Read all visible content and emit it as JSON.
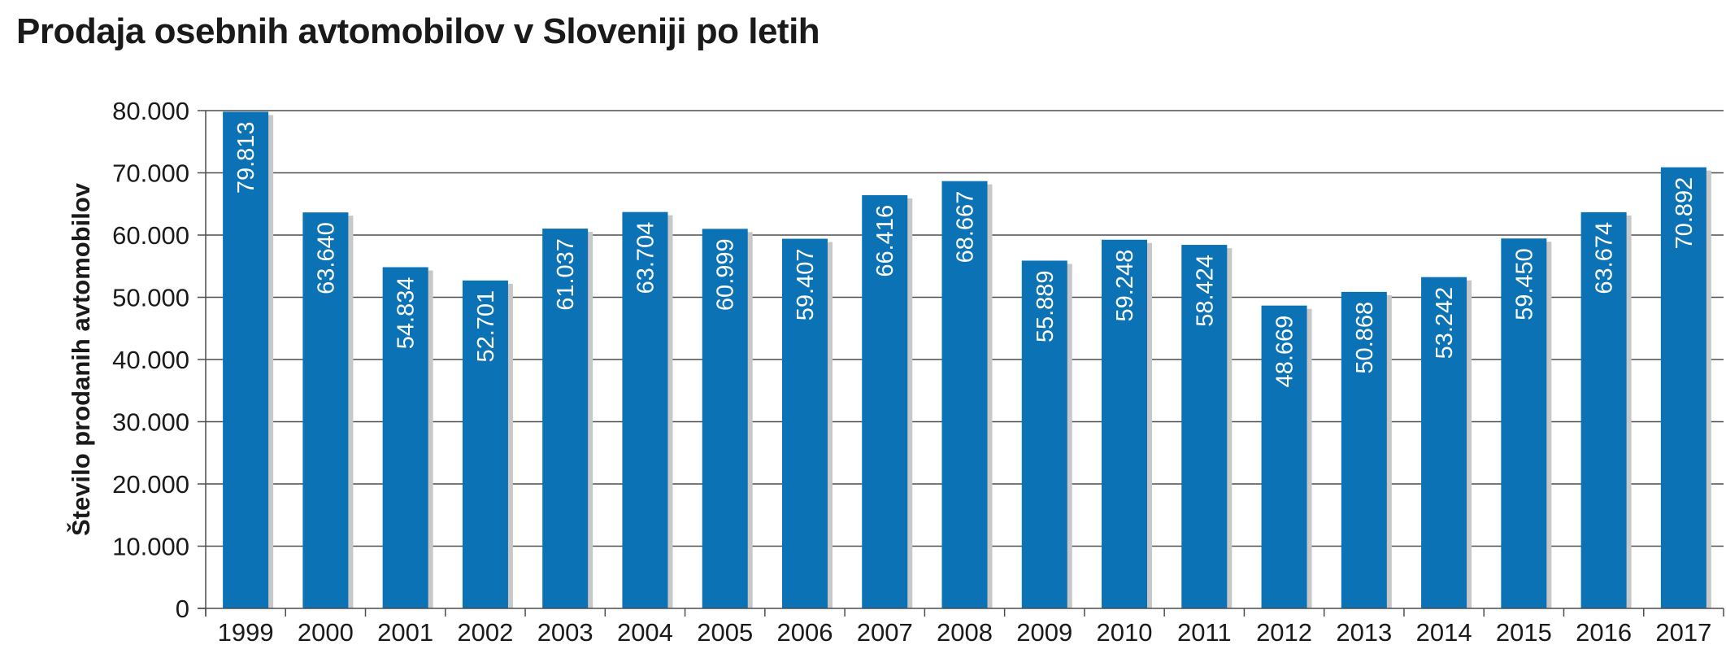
{
  "chart_data": {
    "type": "bar",
    "title": "Prodaja osebnih avtomobilov v Sloveniji po letih",
    "xlabel": "",
    "ylabel": "Število prodanih avtomobilov",
    "categories": [
      "1999",
      "2000",
      "2001",
      "2002",
      "2003",
      "2004",
      "2005",
      "2006",
      "2007",
      "2008",
      "2009",
      "2010",
      "2011",
      "2012",
      "2013",
      "2014",
      "2015",
      "2016",
      "2017"
    ],
    "values": [
      79813,
      63640,
      54834,
      52701,
      61037,
      63704,
      60999,
      59407,
      66416,
      68667,
      55889,
      59248,
      58424,
      48669,
      50868,
      53242,
      59450,
      63674,
      70892
    ],
    "value_labels": [
      "79.813",
      "63.640",
      "54.834",
      "52.701",
      "61.037",
      "63.704",
      "60.999",
      "59.407",
      "66.416",
      "68.667",
      "55.889",
      "59.248",
      "58.424",
      "48.669",
      "50.868",
      "53.242",
      "59.450",
      "63.674",
      "70.892"
    ],
    "ylim": [
      0,
      80000
    ],
    "yticks": [
      0,
      10000,
      20000,
      30000,
      40000,
      50000,
      60000,
      70000,
      80000
    ],
    "ytick_labels": [
      "0",
      "10.000",
      "20.000",
      "30.000",
      "40.000",
      "50.000",
      "60.000",
      "70.000",
      "80.000"
    ],
    "grid": true,
    "legend": "none",
    "colors": {
      "bar": "#0a72b5",
      "grid": "#4d4d4d",
      "shadow": "#c8c8c8"
    }
  }
}
